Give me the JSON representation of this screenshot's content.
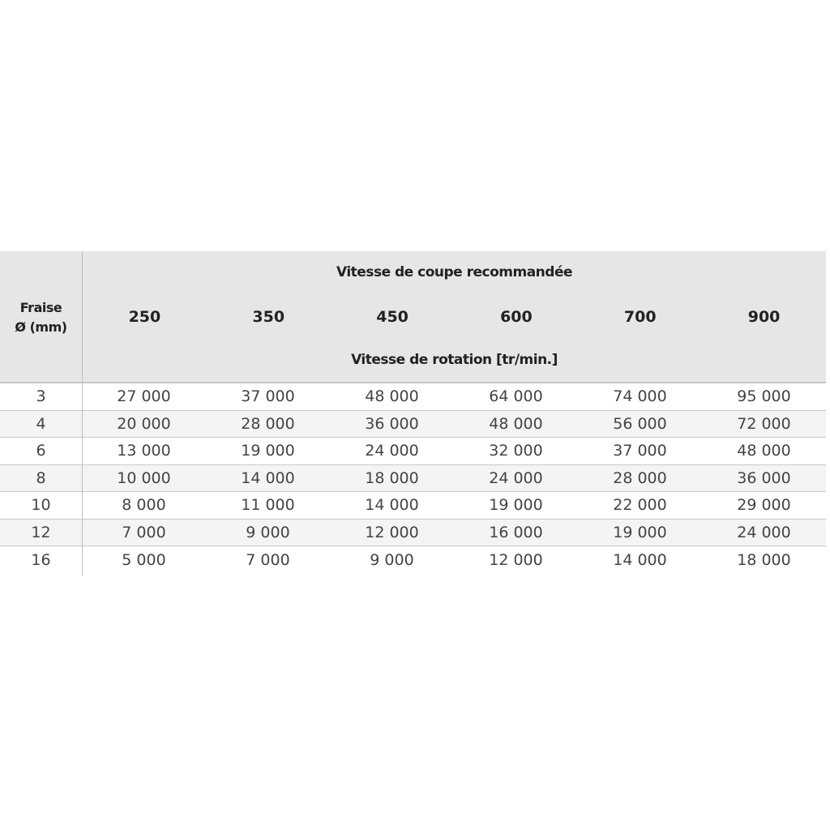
{
  "table": {
    "corner_label_line1": "Fraise",
    "corner_label_line2": "Ø (mm)",
    "header_title": "Vitesse de coupe recommandée",
    "header_subtitle": "Vitesse de rotation [tr/min.]",
    "columns": [
      "250",
      "350",
      "450",
      "600",
      "700",
      "900"
    ],
    "rows": [
      {
        "diameter": "3",
        "values": [
          "27 000",
          "37 000",
          "48 000",
          "64 000",
          "74 000",
          "95 000"
        ]
      },
      {
        "diameter": "4",
        "values": [
          "20 000",
          "28 000",
          "36 000",
          "48 000",
          "56 000",
          "72 000"
        ]
      },
      {
        "diameter": "6",
        "values": [
          "13 000",
          "19 000",
          "24 000",
          "32 000",
          "37 000",
          "48 000"
        ]
      },
      {
        "diameter": "8",
        "values": [
          "10 000",
          "14 000",
          "18 000",
          "24 000",
          "28 000",
          "36 000"
        ]
      },
      {
        "diameter": "10",
        "values": [
          "8 000",
          "11 000",
          "14 000",
          "19 000",
          "22 000",
          "29 000"
        ]
      },
      {
        "diameter": "12",
        "values": [
          "7 000",
          "9 000",
          "12 000",
          "16 000",
          "19 000",
          "24 000"
        ]
      },
      {
        "diameter": "16",
        "values": [
          "5 000",
          "7 000",
          "9 000",
          "12 000",
          "14 000",
          "18 000"
        ]
      }
    ]
  }
}
